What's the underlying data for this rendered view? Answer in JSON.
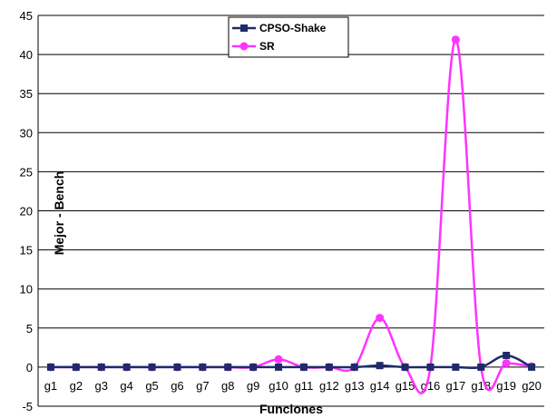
{
  "chart_data": {
    "type": "line",
    "categories": [
      "g1",
      "g2",
      "g3",
      "g4",
      "g5",
      "g6",
      "g7",
      "g8",
      "g9",
      "g10",
      "g11",
      "g12",
      "g13",
      "g14",
      "g15",
      "g16",
      "g17",
      "g18",
      "g19",
      "g20"
    ],
    "series": [
      {
        "name": "CPSO-Shake",
        "color": "#1f2a6b",
        "marker": "square",
        "values": [
          0,
          0,
          0,
          0,
          0,
          0,
          0,
          0,
          0,
          0,
          0,
          0,
          0,
          0.2,
          0,
          0,
          0,
          0,
          1.5,
          0
        ]
      },
      {
        "name": "SR",
        "color": "#ff33ff",
        "marker": "circle",
        "values": [
          0,
          0,
          0,
          0,
          0,
          0,
          0,
          0,
          0,
          1,
          0,
          0,
          0,
          6.3,
          0,
          0,
          41.9,
          0,
          0.5,
          0.1
        ]
      }
    ],
    "xlabel": "Funciones",
    "ylabel": "Mejor - Bench",
    "ylim": [
      -5,
      45
    ],
    "ytick_step": 5,
    "yticks": [
      "-5",
      "0",
      "5",
      "10",
      "15",
      "20",
      "25",
      "30",
      "35",
      "40",
      "45"
    ],
    "grid": true,
    "legend_position": "top-center"
  }
}
